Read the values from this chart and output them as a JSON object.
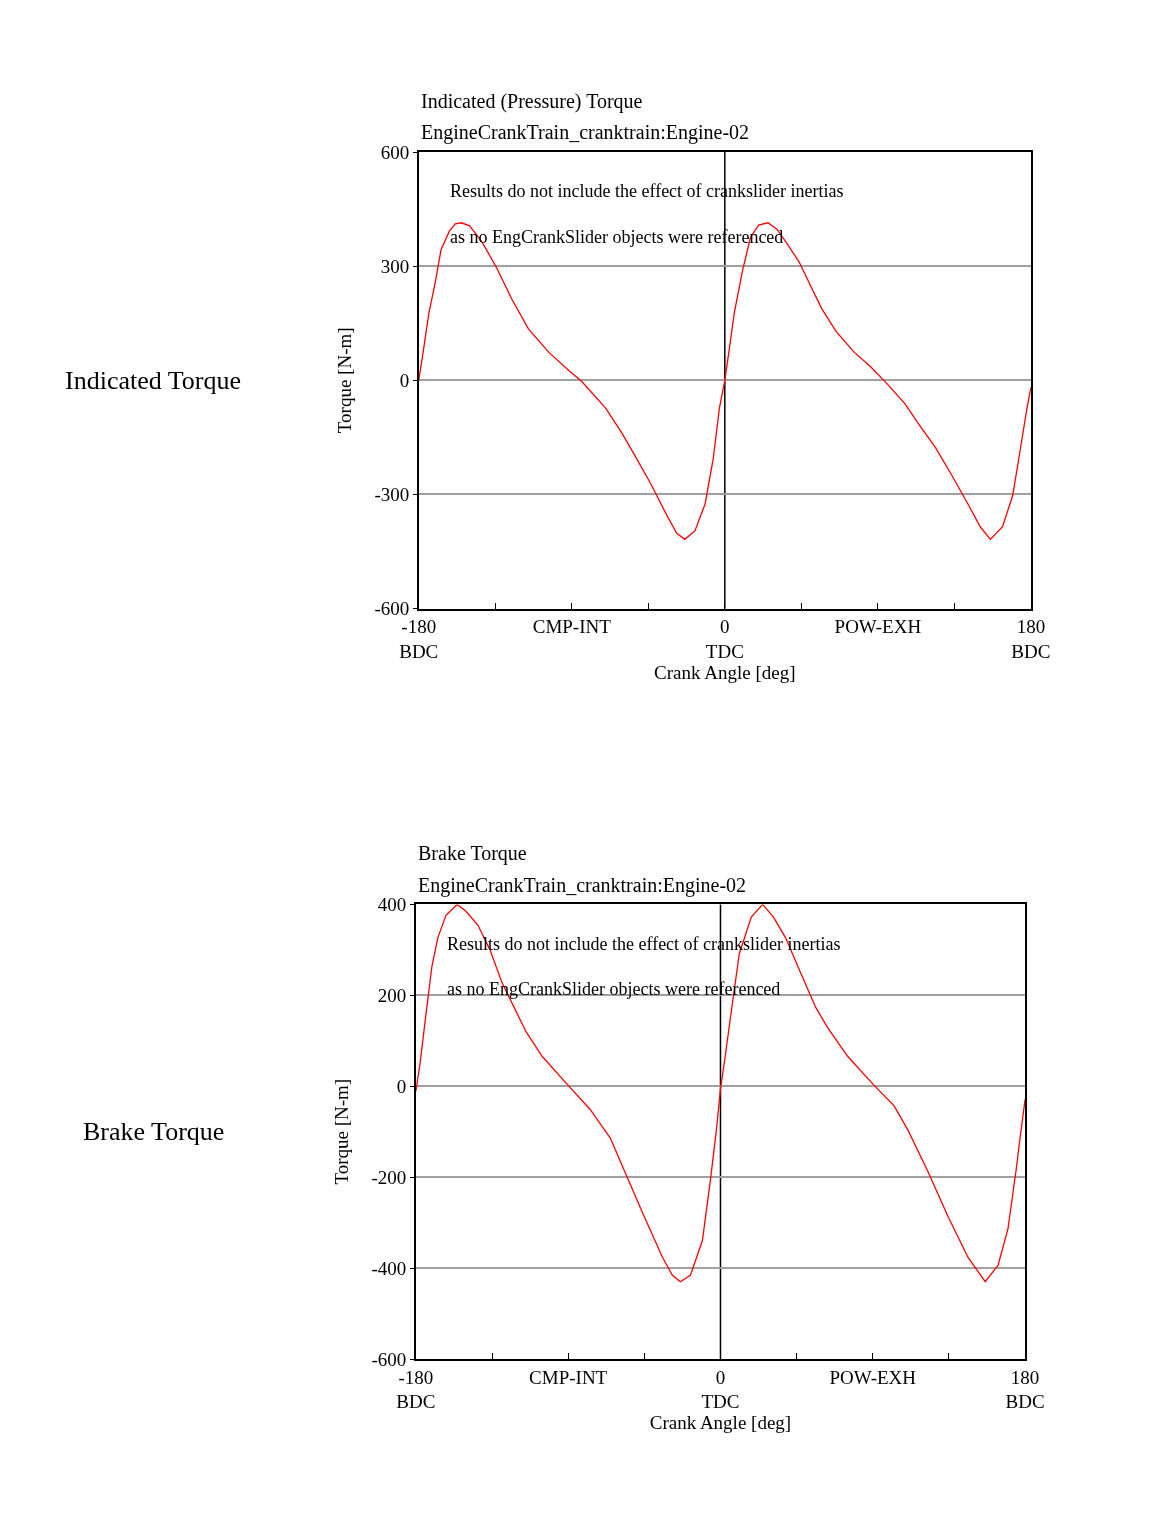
{
  "chart_data": [
    {
      "type": "line",
      "title": "Indicated (Pressure) Torque",
      "subtitle": "EngineCrankTrain_cranktrain:Engine-02",
      "xlabel": "Crank Angle [deg]",
      "ylabel": "Torque [N-m]",
      "annotations": [
        "Results do not include the effect of crankslider inertias",
        "as no EngCrankSlider objects were referenced",
        "Indicated Torque"
      ],
      "series": [
        {
          "color": "#ff0000",
          "x": [
            -180,
            -177.6,
            -174,
            -170.4,
            -166.9,
            -162,
            -158.5,
            -154.9,
            -150.1,
            -143,
            -134.6,
            -125,
            -115.5,
            -103.6,
            -91.6,
            -84.4,
            -70.1,
            -60.5,
            -53.4,
            -43.8,
            -34.3,
            -28.3,
            -23.5,
            -17.6,
            -11.6,
            -6.8,
            -3.2,
            0,
            2.2,
            5.6,
            10.4,
            15.1,
            19.9,
            25.4,
            30.6,
            36.6,
            43.8,
            49.7,
            56.9,
            65.3,
            76,
            85.6,
            95.2,
            106,
            114.3,
            123.9,
            133.4,
            143,
            150.2,
            156.2,
            163.3,
            169.3,
            174.1,
            177.7,
            180
          ],
          "values": [
            0,
            69,
            178,
            255,
            343,
            392,
            411,
            414,
            406,
            365,
            299,
            211,
            135,
            74,
            25,
            -2,
            -73,
            -139,
            -194,
            -270,
            -353,
            -402,
            -418,
            -396,
            -325,
            -205,
            -73,
            0,
            69,
            178,
            288,
            376,
            408,
            414,
            397,
            359,
            310,
            255,
            189,
            129,
            74,
            36,
            -8,
            -62,
            -117,
            -177,
            -249,
            -325,
            -385,
            -418,
            -385,
            -303,
            -172,
            -73,
            -19
          ]
        }
      ],
      "xlim": [
        -180,
        180
      ],
      "xticks": [
        {
          "value": -180,
          "label": "-180\nBDC"
        },
        {
          "value": -135,
          "label": null
        },
        {
          "value": -90,
          "label": "CMP-INT"
        },
        {
          "value": -45,
          "label": null
        },
        {
          "value": 0,
          "label": "0\nTDC"
        },
        {
          "value": 45,
          "label": null
        },
        {
          "value": 90,
          "label": "POW-EXH"
        },
        {
          "value": 135,
          "label": null
        },
        {
          "value": 180,
          "label": "180\nBDC"
        }
      ],
      "ylim": [
        -600,
        600
      ],
      "yticks": [
        -600,
        -300,
        0,
        300,
        600
      ],
      "grid": "y",
      "ref_lines": [
        {
          "axis": "x",
          "value": 0,
          "color": "#000000"
        }
      ]
    },
    {
      "type": "line",
      "title": "Brake Torque",
      "subtitle": "EngineCrankTrain_cranktrain:Engine-02",
      "xlabel": "Crank Angle [deg]",
      "ylabel": "Torque [N-m]",
      "annotations": [
        "Results do not include the effect of crankslider inertias",
        "as no EngCrankSlider objects were referenced",
        "Brake Torque"
      ],
      "series": [
        {
          "color": "#ff0000",
          "x": [
            -180,
            -177.6,
            -174.1,
            -170.5,
            -167,
            -162.2,
            -155.6,
            -150.4,
            -143.3,
            -136.2,
            -129.1,
            -122,
            -114.9,
            -105.4,
            -91.2,
            -77,
            -65.1,
            -55.7,
            -46.2,
            -34.3,
            -28.4,
            -23.7,
            -17.8,
            -10.7,
            -5.9,
            -2.4,
            0,
            2.8,
            6.4,
            11.1,
            18.2,
            24.9,
            31.3,
            38.4,
            46.7,
            56.2,
            63.3,
            75.1,
            90.5,
            102.4,
            110.7,
            122.5,
            134.4,
            146.2,
            156.4,
            164,
            169.9,
            174.6,
            177,
            180
          ],
          "values": [
            -11,
            48,
            156,
            264,
            327,
            376,
            400,
            385,
            354,
            300,
            228,
            174,
            120,
            66,
            7,
            -51,
            -114,
            -195,
            -277,
            -376,
            -416,
            -430,
            -416,
            -340,
            -205,
            -96,
            -6,
            66,
            165,
            291,
            372,
            400,
            372,
            327,
            255,
            174,
            129,
            66,
            3,
            -42,
            -96,
            -187,
            -286,
            -376,
            -430,
            -394,
            -313,
            -187,
            -114,
            -29
          ]
        }
      ],
      "xlim": [
        -180,
        180
      ],
      "xticks": [
        {
          "value": -180,
          "label": "-180\nBDC"
        },
        {
          "value": -135,
          "label": null
        },
        {
          "value": -90,
          "label": "CMP-INT"
        },
        {
          "value": -45,
          "label": null
        },
        {
          "value": 0,
          "label": "0\nTDC"
        },
        {
          "value": 45,
          "label": null
        },
        {
          "value": 90,
          "label": "POW-EXH"
        },
        {
          "value": 135,
          "label": null
        },
        {
          "value": 180,
          "label": "180\nBDC"
        }
      ],
      "ylim": [
        -600,
        400
      ],
      "yticks": [
        -600,
        -400,
        -200,
        0,
        200,
        400
      ],
      "grid": "y",
      "ref_lines": [
        {
          "axis": "x",
          "value": 0,
          "color": "#000000"
        }
      ]
    }
  ]
}
